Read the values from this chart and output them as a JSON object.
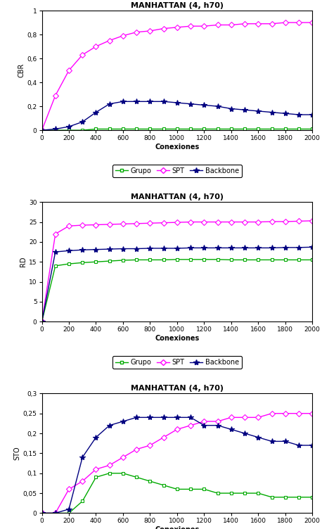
{
  "title": "MANHATTAN (4, h70)",
  "xlabel": "Conexiones",
  "x": [
    0,
    100,
    200,
    300,
    400,
    500,
    600,
    700,
    800,
    900,
    1000,
    1100,
    1200,
    1300,
    1400,
    1500,
    1600,
    1700,
    1800,
    1900,
    2000
  ],
  "cbr": {
    "ylabel": "CBR",
    "ylim": [
      0,
      1
    ],
    "yticks": [
      0,
      0.2,
      0.4,
      0.6,
      0.8,
      1
    ],
    "ytick_labels": [
      "0",
      "0,2",
      "0,4",
      "0,6",
      "0,8",
      "1"
    ],
    "grupo": [
      0,
      0.0,
      0.0,
      0.0,
      0.01,
      0.01,
      0.01,
      0.01,
      0.01,
      0.01,
      0.01,
      0.01,
      0.01,
      0.01,
      0.01,
      0.01,
      0.01,
      0.01,
      0.01,
      0.01,
      0.01
    ],
    "spt": [
      0,
      0.29,
      0.5,
      0.63,
      0.7,
      0.75,
      0.79,
      0.82,
      0.83,
      0.85,
      0.86,
      0.87,
      0.87,
      0.88,
      0.88,
      0.89,
      0.89,
      0.89,
      0.9,
      0.9,
      0.9
    ],
    "backbone": [
      0,
      0.01,
      0.03,
      0.07,
      0.15,
      0.22,
      0.24,
      0.24,
      0.24,
      0.24,
      0.23,
      0.22,
      0.21,
      0.2,
      0.18,
      0.17,
      0.16,
      0.15,
      0.14,
      0.13,
      0.13
    ]
  },
  "rd": {
    "ylabel": "RD",
    "ylim": [
      0,
      30
    ],
    "yticks": [
      0,
      5,
      10,
      15,
      20,
      25,
      30
    ],
    "ytick_labels": [
      "0",
      "5",
      "10",
      "15",
      "20",
      "25",
      "30"
    ],
    "grupo": [
      0,
      14.0,
      14.5,
      14.8,
      15.0,
      15.2,
      15.4,
      15.5,
      15.5,
      15.5,
      15.6,
      15.6,
      15.6,
      15.6,
      15.5,
      15.5,
      15.5,
      15.5,
      15.5,
      15.5,
      15.5
    ],
    "spt": [
      0,
      22.0,
      24.0,
      24.2,
      24.3,
      24.4,
      24.5,
      24.6,
      24.7,
      24.8,
      24.9,
      25.0,
      25.0,
      25.0,
      25.0,
      25.0,
      25.0,
      25.1,
      25.1,
      25.2,
      25.3
    ],
    "backbone": [
      0,
      17.5,
      17.8,
      18.0,
      18.1,
      18.2,
      18.3,
      18.3,
      18.4,
      18.4,
      18.4,
      18.5,
      18.5,
      18.5,
      18.5,
      18.5,
      18.5,
      18.5,
      18.6,
      18.6,
      18.7
    ]
  },
  "sto": {
    "ylabel": "STO",
    "ylim": [
      0,
      0.3
    ],
    "yticks": [
      0,
      0.05,
      0.1,
      0.15,
      0.2,
      0.25,
      0.3
    ],
    "ytick_labels": [
      "0",
      "0,05",
      "0,1",
      "0,15",
      "0,2",
      "0,25",
      "0,3"
    ],
    "grupo": [
      0,
      0.0,
      0.0,
      0.03,
      0.09,
      0.1,
      0.1,
      0.09,
      0.08,
      0.07,
      0.06,
      0.06,
      0.06,
      0.05,
      0.05,
      0.05,
      0.05,
      0.04,
      0.04,
      0.04,
      0.04
    ],
    "spt": [
      0,
      0.0,
      0.06,
      0.08,
      0.11,
      0.12,
      0.14,
      0.16,
      0.17,
      0.19,
      0.21,
      0.22,
      0.23,
      0.23,
      0.24,
      0.24,
      0.24,
      0.25,
      0.25,
      0.25,
      0.25
    ],
    "backbone": [
      0,
      0.0,
      0.01,
      0.14,
      0.19,
      0.22,
      0.23,
      0.24,
      0.24,
      0.24,
      0.24,
      0.24,
      0.22,
      0.22,
      0.21,
      0.2,
      0.19,
      0.18,
      0.18,
      0.17,
      0.17
    ]
  },
  "color_grupo": "#00aa00",
  "color_spt": "#ff00ff",
  "color_backbone": "#000080",
  "marker_grupo": "s",
  "marker_spt": "D",
  "marker_backbone": "*",
  "linewidth": 1.0,
  "markersize_grupo": 3.5,
  "markersize_spt": 4.5,
  "markersize_backbone": 6.0,
  "xticks": [
    0,
    200,
    400,
    600,
    800,
    1000,
    1200,
    1400,
    1600,
    1800,
    2000
  ],
  "title_fontsize": 8,
  "label_fontsize": 7,
  "tick_fontsize": 6.5,
  "legend_fontsize": 7
}
